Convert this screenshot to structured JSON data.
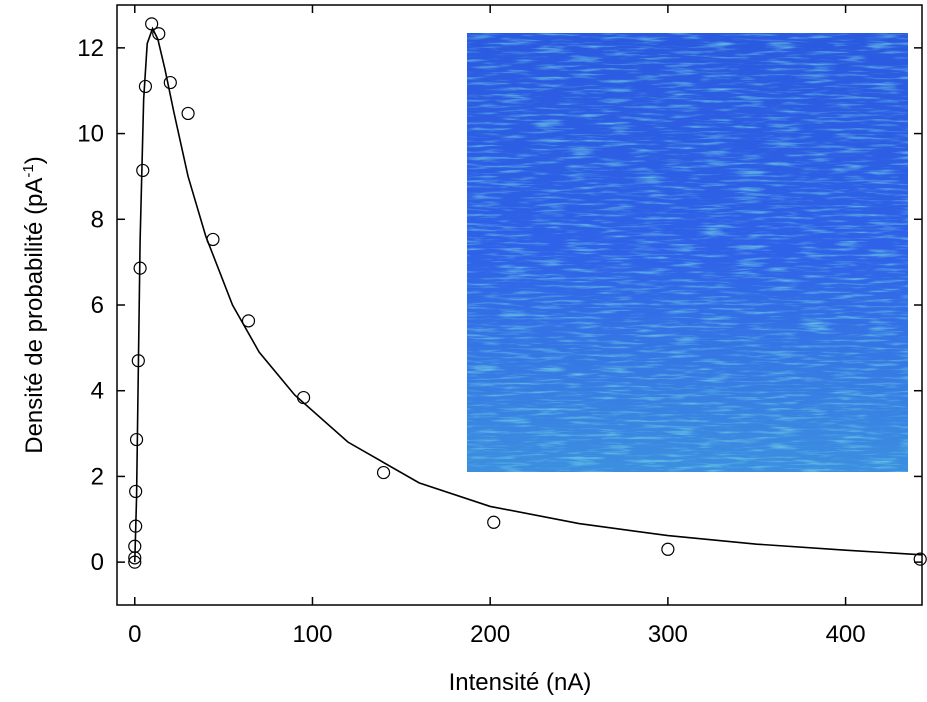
{
  "chart_data": {
    "type": "scatter",
    "xlabel": "Intensité (nA)",
    "ylabel": {
      "text": "Densité de probabilité (pA",
      "sup": "-1",
      "end": ")"
    },
    "xlim": [
      -10,
      443
    ],
    "ylim": [
      -1,
      13
    ],
    "xticks": [
      0,
      100,
      200,
      300,
      400
    ],
    "yticks": [
      0,
      2,
      4,
      6,
      8,
      10,
      12
    ],
    "series": [
      {
        "kind": "points",
        "color": "#000000",
        "x": [
          0,
          0,
          0,
          0.5,
          0.5,
          1,
          2,
          3,
          4.5,
          6,
          9.5,
          13.5,
          20,
          30,
          44,
          64,
          95,
          140,
          202,
          300,
          442
        ],
        "values": [
          0,
          0.1,
          0.37,
          0.84,
          1.65,
          2.86,
          4.7,
          6.86,
          9.14,
          11.1,
          12.56,
          12.33,
          11.19,
          10.47,
          7.53,
          5.63,
          3.84,
          2.09,
          0.93,
          0.3,
          0.07
        ]
      },
      {
        "kind": "line",
        "color": "#000000",
        "x": [
          0,
          1,
          2,
          3,
          5,
          7,
          10,
          13,
          17,
          22,
          30,
          40,
          55,
          70,
          90,
          120,
          160,
          200,
          250,
          300,
          350,
          400,
          443
        ],
        "values": [
          0,
          1.5,
          4.5,
          7.5,
          10.8,
          12.1,
          12.45,
          12.2,
          11.5,
          10.5,
          9.0,
          7.6,
          6.0,
          4.9,
          3.9,
          2.8,
          1.85,
          1.3,
          0.9,
          0.62,
          0.42,
          0.28,
          0.17
        ]
      }
    ]
  }
}
